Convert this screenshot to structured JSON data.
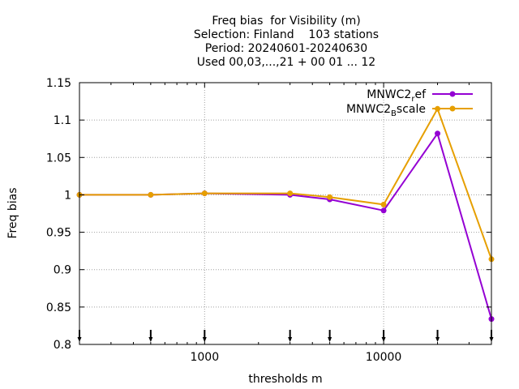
{
  "chart_data": {
    "type": "line",
    "title": [
      "Freq bias  for Visibility (m)",
      "Selection: Finland    103 stations",
      "Period: 20240601-20240630",
      "Used 00,03,...,21 + 00 01 ... 12"
    ],
    "xlabel": "thresholds m",
    "ylabel": "Freq bias",
    "x_scale": "log",
    "xlim": [
      200,
      40000
    ],
    "ylim": [
      0.8,
      1.15
    ],
    "x_ticks": [
      {
        "value": 1000,
        "label": "1000"
      },
      {
        "value": 10000,
        "label": "10000"
      }
    ],
    "y_ticks": [
      {
        "value": 0.8,
        "label": "0.8"
      },
      {
        "value": 0.85,
        "label": "0.85"
      },
      {
        "value": 0.9,
        "label": "0.9"
      },
      {
        "value": 0.95,
        "label": "0.95"
      },
      {
        "value": 1.0,
        "label": "1"
      },
      {
        "value": 1.05,
        "label": "1.05"
      },
      {
        "value": 1.1,
        "label": "1.1"
      },
      {
        "value": 1.15,
        "label": "1.15"
      }
    ],
    "grid": true,
    "legend_position": "top-right",
    "threshold_markers": [
      200,
      500,
      1000,
      3000,
      5000,
      10000,
      20000,
      40000
    ],
    "x": [
      200,
      500,
      1000,
      3000,
      5000,
      10000,
      20000,
      40000
    ],
    "series": [
      {
        "name_main": "MNWC2",
        "name_sub": "r",
        "name_rest": "ef",
        "color": "#9400d3",
        "values": [
          1.0,
          1.0,
          1.002,
          1.0,
          0.994,
          0.979,
          1.082,
          0.834
        ]
      },
      {
        "name_main": "MNWC2",
        "name_sub": "B",
        "name_rest": "scale",
        "color": "#e69f00",
        "values": [
          1.0,
          1.0,
          1.002,
          1.002,
          0.997,
          0.987,
          1.115,
          0.914
        ]
      }
    ]
  }
}
